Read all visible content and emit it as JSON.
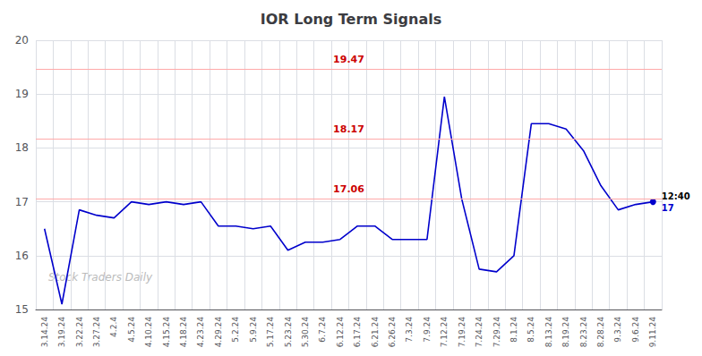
{
  "chart_data": {
    "type": "line",
    "title": "IOR Long Term Signals",
    "categories": [
      "3.14.24",
      "3.19.24",
      "3.22.24",
      "3.27.24",
      "4.2.4",
      "4.5.24",
      "4.10.24",
      "4.15.24",
      "4.18.24",
      "4.23.24",
      "4.29.24",
      "5.2.24",
      "5.9.24",
      "5.17.24",
      "5.23.24",
      "5.30.24",
      "6.7.24",
      "6.12.24",
      "6.17.24",
      "6.21.24",
      "6.26.24",
      "7.3.24",
      "7.9.24",
      "7.12.24",
      "7.19.24",
      "7.24.24",
      "7.29.24",
      "8.1.24",
      "8.5.24",
      "8.13.24",
      "8.19.24",
      "8.23.24",
      "8.28.24",
      "9.3.24",
      "9.6.24",
      "9.11.24"
    ],
    "values": [
      16.5,
      15.1,
      16.85,
      16.75,
      16.7,
      17.0,
      16.95,
      17.0,
      16.95,
      17.0,
      16.55,
      16.55,
      16.5,
      16.55,
      16.1,
      16.25,
      16.25,
      16.3,
      16.55,
      16.55,
      16.3,
      16.3,
      16.3,
      18.95,
      17.05,
      15.75,
      15.7,
      16.0,
      18.45,
      18.45,
      18.35,
      17.95,
      17.3,
      16.85,
      16.95,
      17.0
    ],
    "color": "#0000cc",
    "ylim": [
      15,
      20
    ],
    "yticks": [
      15,
      16,
      17,
      18,
      19,
      20
    ],
    "grid": true,
    "hlines": [
      {
        "value": 19.47,
        "label": "19.47",
        "color": "#ffaaaa",
        "label_color": "#cc0000"
      },
      {
        "value": 18.17,
        "label": "18.17",
        "color": "#ffaaaa",
        "label_color": "#cc0000"
      },
      {
        "value": 17.06,
        "label": "17.06",
        "color": "#ffaaaa",
        "label_color": "#cc0000"
      }
    ],
    "endpoint_labels": [
      "12:40",
      "17"
    ],
    "watermark": "Stock Traders Daily"
  }
}
